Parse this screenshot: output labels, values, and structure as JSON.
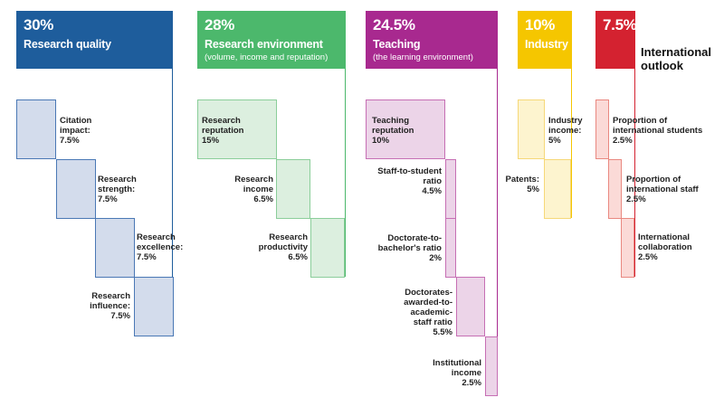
{
  "colors": {
    "research_quality": "#1e5d9c",
    "research_environment": "#4cb86c",
    "teaching": "#a8298f",
    "industry": "#f5c600",
    "international": "#d42230"
  },
  "pillars": [
    {
      "id": "research-quality",
      "weight": "30%",
      "name": "Research quality",
      "subtitle": "",
      "items": [
        {
          "label": "Citation impact:",
          "weight": "7.5%"
        },
        {
          "label": "Research strength:",
          "weight": "7.5%"
        },
        {
          "label": "Research excellence:",
          "weight": "7.5%"
        },
        {
          "label": "Research influence:",
          "weight": "7.5%"
        }
      ]
    },
    {
      "id": "research-environment",
      "weight": "28%",
      "name": "Research environment",
      "subtitle": "(volume, income and reputation)",
      "items": [
        {
          "label": "Research reputation",
          "weight": "15%"
        },
        {
          "label": "Research income",
          "weight": "6.5%"
        },
        {
          "label": "Research productivity",
          "weight": "6.5%"
        }
      ]
    },
    {
      "id": "teaching",
      "weight": "24.5%",
      "name": "Teaching",
      "subtitle": "(the learning environment)",
      "items": [
        {
          "label": "Teaching reputation",
          "weight": "10%"
        },
        {
          "label": "Staff-to-student ratio",
          "weight": "4.5%"
        },
        {
          "label": "Doctorate-to-bachelor's ratio",
          "weight": "2%"
        },
        {
          "label": "Doctorates-awarded-to-academic-staff ratio",
          "weight": "5.5%"
        },
        {
          "label": "Institutional income",
          "weight": "2.5%"
        }
      ]
    },
    {
      "id": "industry",
      "weight": "10%",
      "name": "Industry",
      "subtitle": "",
      "items": [
        {
          "label": "Industry income:",
          "weight": "5%"
        },
        {
          "label": "Patents:",
          "weight": "5%"
        }
      ]
    },
    {
      "id": "international-outlook",
      "weight": "7.5%",
      "name": "International outlook",
      "subtitle": "",
      "items": [
        {
          "label": "Proportion of international students",
          "weight": "2.5%"
        },
        {
          "label": "Proportion of international staff",
          "weight": "2.5%"
        },
        {
          "label": "International collaboration",
          "weight": "2.5%"
        }
      ]
    }
  ]
}
